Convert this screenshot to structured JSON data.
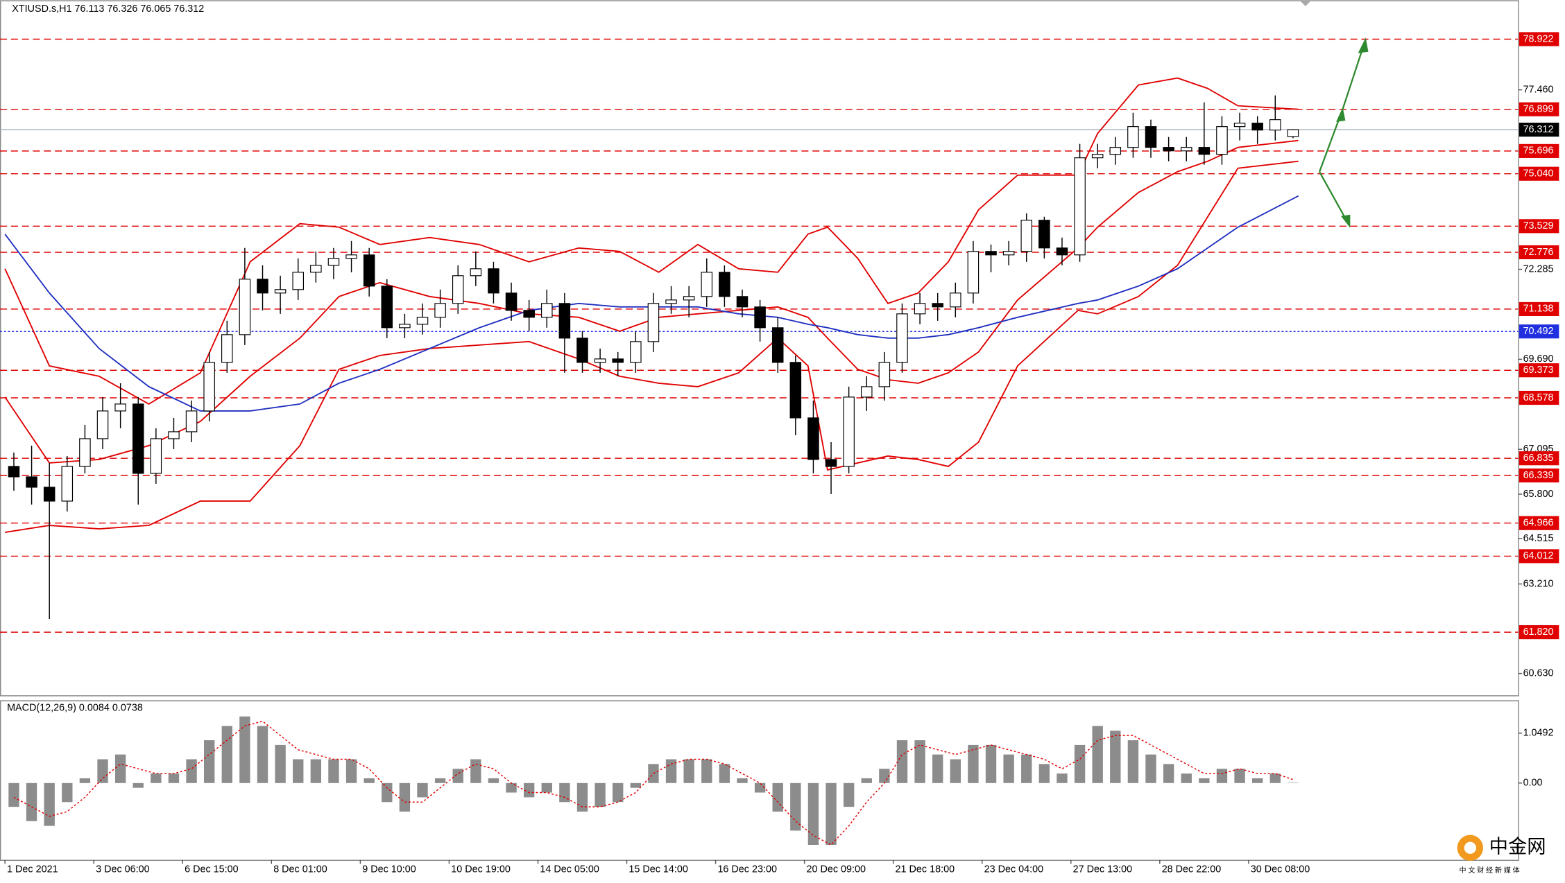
{
  "chart_data": [
    {
      "type": "candlestick",
      "title": "XTIUSD.s,H1  76.113 76.326 76.065 76.312",
      "xlim": [
        -0.28,
        85.17
      ],
      "ylim": [
        60.0,
        80.044
      ],
      "yticks": [
        {
          "value": 77.46,
          "label": "77.460"
        },
        72.285,
        {
          "value": 69.69,
          "label": "69.690"
        },
        67.095,
        {
          "value": 65.8,
          "label": "65.800"
        },
        64.515,
        {
          "value": 63.21,
          "label": "63.210"
        },
        {
          "value": 60.63,
          "label": "60.630"
        }
      ],
      "candle_up_color": "#ffffff",
      "candle_down_color": "#000000",
      "candles": [
        [
          66.6,
          67.0,
          65.9,
          66.3
        ],
        [
          66.3,
          67.2,
          65.5,
          66.0
        ],
        [
          66.0,
          66.7,
          62.2,
          65.6
        ],
        [
          65.6,
          66.9,
          65.3,
          66.6
        ],
        [
          66.6,
          67.8,
          66.4,
          67.4
        ],
        [
          67.4,
          68.6,
          67.1,
          68.2
        ],
        [
          68.2,
          69.0,
          67.7,
          68.4
        ],
        [
          68.4,
          68.6,
          65.5,
          66.4
        ],
        [
          66.4,
          67.7,
          66.1,
          67.4
        ],
        [
          67.4,
          68.0,
          67.1,
          67.6
        ],
        [
          67.6,
          68.5,
          67.3,
          68.2
        ],
        [
          68.2,
          69.9,
          67.9,
          69.6
        ],
        [
          69.6,
          70.8,
          69.3,
          70.4
        ],
        [
          70.4,
          72.9,
          70.1,
          72.0
        ],
        [
          72.0,
          72.4,
          71.1,
          71.6
        ],
        [
          71.6,
          72.1,
          71.0,
          71.7
        ],
        [
          71.7,
          72.6,
          71.4,
          72.2
        ],
        [
          72.2,
          72.8,
          71.9,
          72.4
        ],
        [
          72.4,
          72.9,
          72.0,
          72.6
        ],
        [
          72.6,
          73.1,
          72.2,
          72.7
        ],
        [
          72.7,
          72.9,
          71.5,
          71.8
        ],
        [
          71.8,
          72.0,
          70.3,
          70.6
        ],
        [
          70.6,
          71.0,
          70.3,
          70.7
        ],
        [
          70.7,
          71.3,
          70.4,
          70.9
        ],
        [
          70.9,
          71.7,
          70.6,
          71.3
        ],
        [
          71.3,
          72.4,
          71.0,
          72.1
        ],
        [
          72.1,
          72.8,
          71.8,
          72.3
        ],
        [
          72.3,
          72.5,
          71.3,
          71.6
        ],
        [
          71.6,
          71.9,
          70.8,
          71.1
        ],
        [
          71.1,
          71.4,
          70.5,
          70.9
        ],
        [
          70.9,
          71.7,
          70.6,
          71.3
        ],
        [
          71.3,
          71.6,
          69.3,
          70.3
        ],
        [
          70.3,
          70.5,
          69.3,
          69.6
        ],
        [
          69.6,
          70.0,
          69.3,
          69.7
        ],
        [
          69.7,
          69.9,
          69.2,
          69.6
        ],
        [
          69.6,
          70.5,
          69.3,
          70.2
        ],
        [
          70.2,
          71.6,
          69.9,
          71.3
        ],
        [
          71.3,
          71.8,
          71.0,
          71.4
        ],
        [
          71.4,
          71.8,
          70.9,
          71.5
        ],
        [
          71.5,
          72.6,
          71.2,
          72.2
        ],
        [
          72.2,
          72.4,
          71.2,
          71.5
        ],
        [
          71.5,
          71.7,
          70.9,
          71.2
        ],
        [
          71.2,
          71.4,
          70.2,
          70.6
        ],
        [
          70.6,
          70.9,
          69.3,
          69.6
        ],
        [
          69.6,
          69.8,
          67.5,
          68.0
        ],
        [
          68.0,
          68.5,
          66.4,
          66.8
        ],
        [
          66.8,
          67.3,
          65.8,
          66.6
        ],
        [
          66.6,
          68.9,
          66.4,
          68.6
        ],
        [
          68.6,
          69.2,
          68.2,
          68.9
        ],
        [
          68.9,
          69.9,
          68.5,
          69.6
        ],
        [
          69.6,
          71.3,
          69.3,
          71.0
        ],
        [
          71.0,
          71.6,
          70.7,
          71.3
        ],
        [
          71.3,
          71.6,
          70.8,
          71.2
        ],
        [
          71.2,
          71.9,
          70.9,
          71.6
        ],
        [
          71.6,
          73.1,
          71.3,
          72.8
        ],
        [
          72.8,
          73.0,
          72.2,
          72.7
        ],
        [
          72.7,
          73.1,
          72.4,
          72.8
        ],
        [
          72.8,
          73.9,
          72.5,
          73.7
        ],
        [
          73.7,
          73.8,
          72.6,
          72.9
        ],
        [
          72.9,
          73.2,
          72.4,
          72.7
        ],
        [
          72.7,
          75.9,
          72.5,
          75.5
        ],
        [
          75.5,
          75.9,
          75.2,
          75.6
        ],
        [
          75.6,
          76.1,
          75.3,
          75.8
        ],
        [
          75.8,
          76.8,
          75.5,
          76.4
        ],
        [
          76.4,
          76.6,
          75.5,
          75.8
        ],
        [
          75.8,
          76.1,
          75.4,
          75.7
        ],
        [
          75.7,
          76.1,
          75.4,
          75.8
        ],
        [
          75.8,
          77.1,
          75.3,
          75.6
        ],
        [
          75.6,
          76.7,
          75.3,
          76.4
        ],
        [
          76.4,
          76.8,
          76.0,
          76.5
        ],
        [
          76.5,
          76.7,
          75.9,
          76.3
        ],
        [
          76.3,
          77.3,
          76.0,
          76.6
        ],
        [
          76.113,
          76.326,
          76.065,
          76.312
        ]
      ],
      "overlay_x": [
        0,
        2.5,
        5.3,
        8.1,
        11,
        13.8,
        16.6,
        18.8,
        21.1,
        23.9,
        26.7,
        29.5,
        32.3,
        34.6,
        36.8,
        39,
        41.3,
        43.5,
        45.2,
        46.3,
        48,
        49.7,
        51.4,
        53.1,
        54.8,
        57,
        60.4,
        61.5,
        63.8,
        66,
        67.7,
        69.4,
        72.8
      ],
      "lines": [
        {
          "color": "#e00000",
          "values": [
            72.3,
            69.5,
            69.2,
            68.4,
            69.3,
            72.5,
            73.6,
            73.5,
            73.0,
            73.2,
            73.0,
            72.5,
            72.9,
            72.8,
            72.2,
            73.0,
            72.3,
            72.2,
            73.3,
            73.5,
            72.6,
            71.3,
            71.6,
            72.5,
            74.0,
            75.0,
            75.0,
            76.2,
            77.6,
            77.8,
            77.5,
            77.0,
            76.9
          ]
        },
        {
          "color": "#e00000",
          "values": [
            68.6,
            66.7,
            66.8,
            67.2,
            67.9,
            69.2,
            70.3,
            71.5,
            71.9,
            71.5,
            71.3,
            71.0,
            70.9,
            70.5,
            70.9,
            71.0,
            71.1,
            71.2,
            70.9,
            70.3,
            69.4,
            69.1,
            69.0,
            69.3,
            69.9,
            71.4,
            72.9,
            73.5,
            74.5,
            75.1,
            75.4,
            75.8,
            76.0
          ]
        },
        {
          "color": "#e00000",
          "values": [
            64.7,
            64.9,
            64.8,
            64.9,
            65.6,
            65.6,
            67.2,
            69.4,
            69.8,
            70.0,
            70.1,
            70.2,
            69.7,
            69.2,
            69.0,
            68.9,
            69.3,
            70.3,
            69.5,
            66.5,
            66.7,
            66.9,
            66.8,
            66.6,
            67.3,
            69.5,
            71.1,
            71.0,
            71.5,
            72.4,
            73.8,
            75.2,
            75.4
          ]
        },
        {
          "color": "#2030c0",
          "values": [
            73.3,
            71.6,
            70.0,
            68.9,
            68.2,
            68.2,
            68.4,
            69.0,
            69.4,
            70.0,
            70.6,
            71.1,
            71.3,
            71.2,
            71.2,
            71.2,
            71.0,
            70.9,
            70.7,
            70.6,
            70.4,
            70.3,
            70.3,
            70.4,
            70.6,
            70.9,
            71.3,
            71.4,
            71.8,
            72.3,
            72.9,
            73.5,
            74.4
          ]
        }
      ],
      "level_color": "#e00000",
      "levels": [
        78.922,
        76.899,
        75.696,
        {
          "value": 75.04,
          "label": "75.040"
        },
        73.529,
        72.776,
        71.138,
        69.373,
        68.578,
        66.835,
        66.339,
        64.966,
        64.012,
        {
          "value": 61.82,
          "label": "61.820"
        }
      ],
      "marker_line": {
        "value": 70.492,
        "color": "#2030e0"
      },
      "last_price": 76.312,
      "last_price_color": "#000000"
    },
    {
      "type": "macd",
      "title": "MACD(12,26,9) 0.0084 0.0738",
      "xlim": [
        -0.28,
        85.17
      ],
      "ylim": [
        -1.614,
        1.719
      ],
      "yticks": [
        1.0492,
        {
          "value": 0,
          "label": "0.00"
        }
      ],
      "xticks": [
        {
          "value": 0,
          "label": "1 Dec 2021"
        },
        {
          "value": 5,
          "label": "3 Dec 06:00"
        },
        {
          "value": 10,
          "label": "6 Dec 15:00"
        },
        {
          "value": 15,
          "label": "8 Dec 01:00"
        },
        {
          "value": 20,
          "label": "9 Dec 10:00"
        },
        {
          "value": 25,
          "label": "10 Dec 19:00"
        },
        {
          "value": 30,
          "label": "14 Dec 05:00"
        },
        {
          "value": 35,
          "label": "15 Dec 14:00"
        },
        {
          "value": 40,
          "label": "16 Dec 23:00"
        },
        {
          "value": 45,
          "label": "20 Dec 09:00"
        },
        {
          "value": 50,
          "label": "21 Dec 18:00"
        },
        {
          "value": 55,
          "label": "23 Dec 04:00"
        },
        {
          "value": 60,
          "label": "27 Dec 13:00"
        },
        {
          "value": 65,
          "label": "28 Dec 22:00"
        },
        {
          "value": 70,
          "label": "30 Dec 08:00"
        }
      ],
      "histogram_color": "#8c8c8c",
      "signal_color": "#e00000",
      "histogram": [
        -0.5,
        -0.8,
        -0.9,
        -0.4,
        0.1,
        0.5,
        0.6,
        -0.1,
        0.2,
        0.2,
        0.5,
        0.9,
        1.2,
        1.4,
        1.2,
        0.8,
        0.5,
        0.5,
        0.5,
        0.5,
        0.1,
        -0.4,
        -0.6,
        -0.3,
        0.1,
        0.3,
        0.5,
        0.1,
        -0.2,
        -0.3,
        -0.2,
        -0.4,
        -0.6,
        -0.5,
        -0.4,
        -0.1,
        0.4,
        0.5,
        0.5,
        0.5,
        0.4,
        0.1,
        -0.2,
        -0.6,
        -1.0,
        -1.3,
        -1.3,
        -0.5,
        0.1,
        0.3,
        0.9,
        0.9,
        0.6,
        0.5,
        0.8,
        0.8,
        0.6,
        0.6,
        0.4,
        0.2,
        0.8,
        1.2,
        1.1,
        0.9,
        0.6,
        0.4,
        0.2,
        0.1,
        0.3,
        0.3,
        0.1,
        0.2,
        0.0084
      ],
      "signal": [
        -0.3,
        -0.5,
        -0.7,
        -0.6,
        -0.3,
        0.1,
        0.4,
        0.3,
        0.2,
        0.2,
        0.3,
        0.6,
        0.9,
        1.2,
        1.3,
        1.0,
        0.7,
        0.6,
        0.5,
        0.5,
        0.3,
        -0.1,
        -0.4,
        -0.4,
        -0.1,
        0.2,
        0.4,
        0.3,
        0.0,
        -0.2,
        -0.2,
        -0.3,
        -0.5,
        -0.5,
        -0.4,
        -0.2,
        0.2,
        0.4,
        0.5,
        0.5,
        0.4,
        0.2,
        0.0,
        -0.4,
        -0.8,
        -1.1,
        -1.3,
        -0.9,
        -0.4,
        0.0,
        0.6,
        0.8,
        0.7,
        0.6,
        0.7,
        0.8,
        0.7,
        0.6,
        0.5,
        0.3,
        0.5,
        0.9,
        1.0,
        1.0,
        0.8,
        0.6,
        0.4,
        0.2,
        0.2,
        0.3,
        0.2,
        0.2,
        0.0738
      ]
    }
  ],
  "watermark": {
    "logo": "中金网",
    "slogan": "中 文 财 经 新 媒 体"
  }
}
